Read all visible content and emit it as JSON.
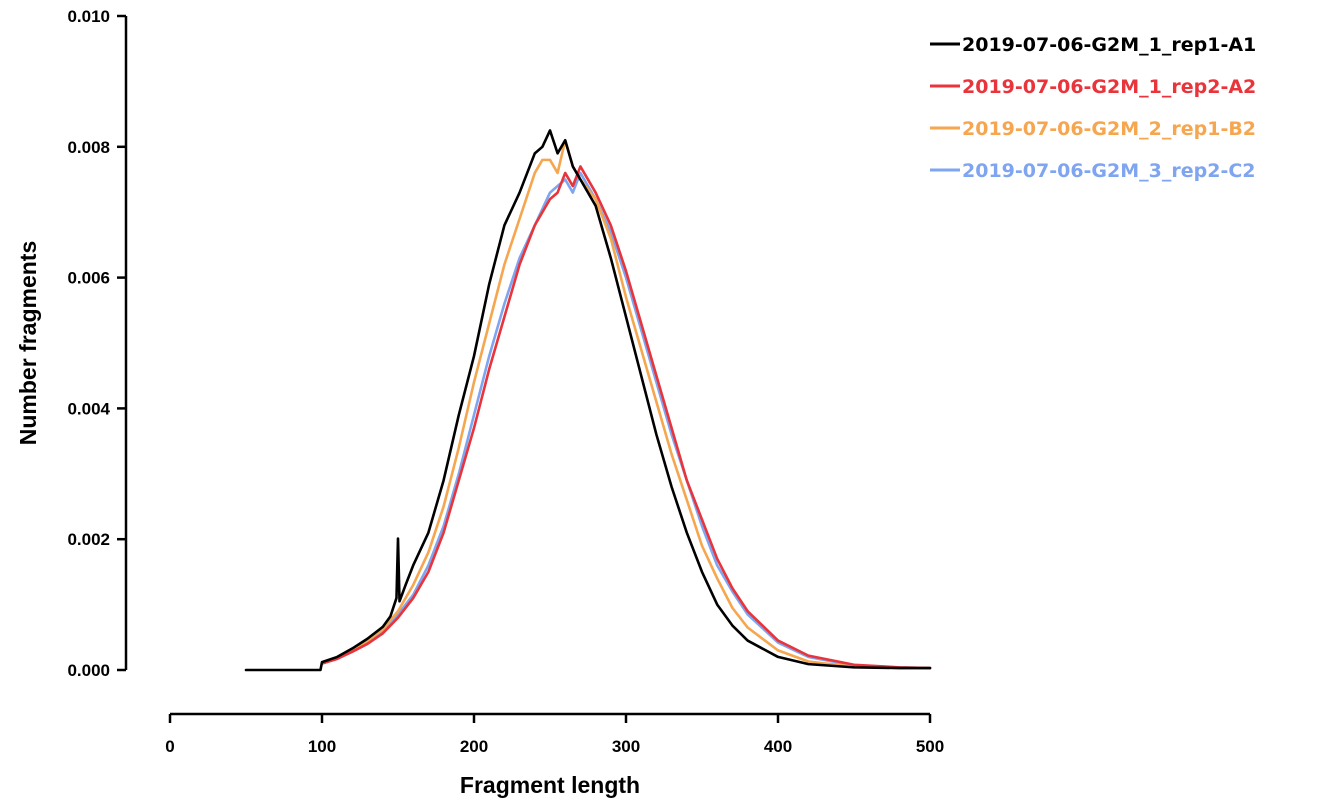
{
  "chart_data": {
    "type": "line",
    "title": "",
    "xlabel": "Fragment length",
    "ylabel": "Number fragments",
    "xlim": [
      0,
      500
    ],
    "ylim": [
      0,
      0.01
    ],
    "x_ticks": [
      0,
      100,
      200,
      300,
      400,
      500
    ],
    "x_tick_labels": [
      "0",
      "100",
      "200",
      "300",
      "400",
      "500"
    ],
    "y_ticks": [
      0,
      0.002,
      0.004,
      0.006,
      0.008,
      0.01
    ],
    "y_tick_labels": [
      "0.000",
      "0.002",
      "0.004",
      "0.006",
      "0.008",
      "0.010"
    ],
    "grid": false,
    "legend_position": "top-right",
    "series": [
      {
        "name": "2019-07-06-G2M_1_rep1-A1",
        "color": "#000000",
        "x": [
          50,
          99,
          100,
          110,
          120,
          130,
          140,
          145,
          149,
          150,
          151,
          155,
          160,
          170,
          180,
          190,
          200,
          210,
          220,
          230,
          240,
          245,
          250,
          255,
          260,
          265,
          270,
          280,
          290,
          300,
          310,
          320,
          330,
          340,
          350,
          360,
          370,
          380,
          400,
          420,
          450,
          480,
          500
        ],
        "y": [
          0.0,
          0.0,
          0.00012,
          0.0002,
          0.00033,
          0.00048,
          0.00066,
          0.00082,
          0.0011,
          0.00201,
          0.00105,
          0.0013,
          0.0016,
          0.0021,
          0.0029,
          0.0039,
          0.0048,
          0.0059,
          0.0068,
          0.0073,
          0.0079,
          0.008,
          0.00825,
          0.0079,
          0.0081,
          0.0077,
          0.0075,
          0.0071,
          0.0063,
          0.0054,
          0.0045,
          0.0036,
          0.0028,
          0.0021,
          0.0015,
          0.001,
          0.00068,
          0.00045,
          0.0002,
          9e-05,
          4e-05,
          3e-05,
          3e-05
        ]
      },
      {
        "name": "2019-07-06-G2M_1_rep2-A2",
        "color": "#e8343a",
        "x": [
          100,
          110,
          120,
          130,
          140,
          150,
          160,
          170,
          180,
          190,
          200,
          210,
          220,
          230,
          240,
          250,
          255,
          260,
          265,
          270,
          280,
          290,
          300,
          310,
          320,
          330,
          340,
          350,
          360,
          370,
          380,
          400,
          420,
          450,
          480,
          500
        ],
        "y": [
          0.0001,
          0.00017,
          0.00028,
          0.0004,
          0.00056,
          0.0008,
          0.0011,
          0.0015,
          0.0021,
          0.0029,
          0.0037,
          0.0046,
          0.0054,
          0.0062,
          0.0068,
          0.0072,
          0.0073,
          0.0076,
          0.0074,
          0.0077,
          0.0073,
          0.0068,
          0.0061,
          0.0053,
          0.0045,
          0.0037,
          0.0029,
          0.0023,
          0.0017,
          0.00125,
          0.0009,
          0.00045,
          0.00022,
          8e-05,
          4e-05,
          3e-05
        ]
      },
      {
        "name": "2019-07-06-G2M_2_rep1-B2",
        "color": "#f5a64f",
        "x": [
          100,
          110,
          120,
          130,
          140,
          150,
          160,
          170,
          180,
          190,
          200,
          210,
          220,
          230,
          240,
          245,
          250,
          255,
          260,
          265,
          270,
          280,
          290,
          300,
          310,
          320,
          330,
          340,
          350,
          360,
          370,
          380,
          400,
          420,
          450,
          480,
          500
        ],
        "y": [
          0.0001,
          0.00018,
          0.0003,
          0.00045,
          0.00062,
          0.0009,
          0.0013,
          0.0018,
          0.0025,
          0.0034,
          0.0044,
          0.0053,
          0.0062,
          0.0069,
          0.0076,
          0.0078,
          0.0078,
          0.0076,
          0.0081,
          0.0077,
          0.0075,
          0.0072,
          0.0066,
          0.0057,
          0.0049,
          0.0041,
          0.0033,
          0.0026,
          0.0019,
          0.0014,
          0.00095,
          0.00065,
          0.0003,
          0.00013,
          5e-05,
          3e-05,
          3e-05
        ]
      },
      {
        "name": "2019-07-06-G2M_3_rep2-C2",
        "color": "#7fa5f0",
        "x": [
          100,
          110,
          120,
          130,
          140,
          150,
          160,
          170,
          180,
          190,
          200,
          210,
          220,
          230,
          240,
          250,
          255,
          260,
          265,
          270,
          280,
          290,
          300,
          310,
          320,
          330,
          340,
          350,
          360,
          370,
          380,
          400,
          420,
          450,
          480,
          500
        ],
        "y": [
          0.0001,
          0.00017,
          0.00029,
          0.00042,
          0.00058,
          0.00085,
          0.00115,
          0.0016,
          0.0022,
          0.003,
          0.0039,
          0.0048,
          0.0056,
          0.0063,
          0.0068,
          0.0073,
          0.0074,
          0.0075,
          0.0073,
          0.0076,
          0.0072,
          0.0067,
          0.006,
          0.0052,
          0.0044,
          0.0036,
          0.0029,
          0.0022,
          0.0016,
          0.0012,
          0.00085,
          0.00042,
          0.0002,
          7e-05,
          4e-05,
          3e-05
        ]
      }
    ]
  }
}
